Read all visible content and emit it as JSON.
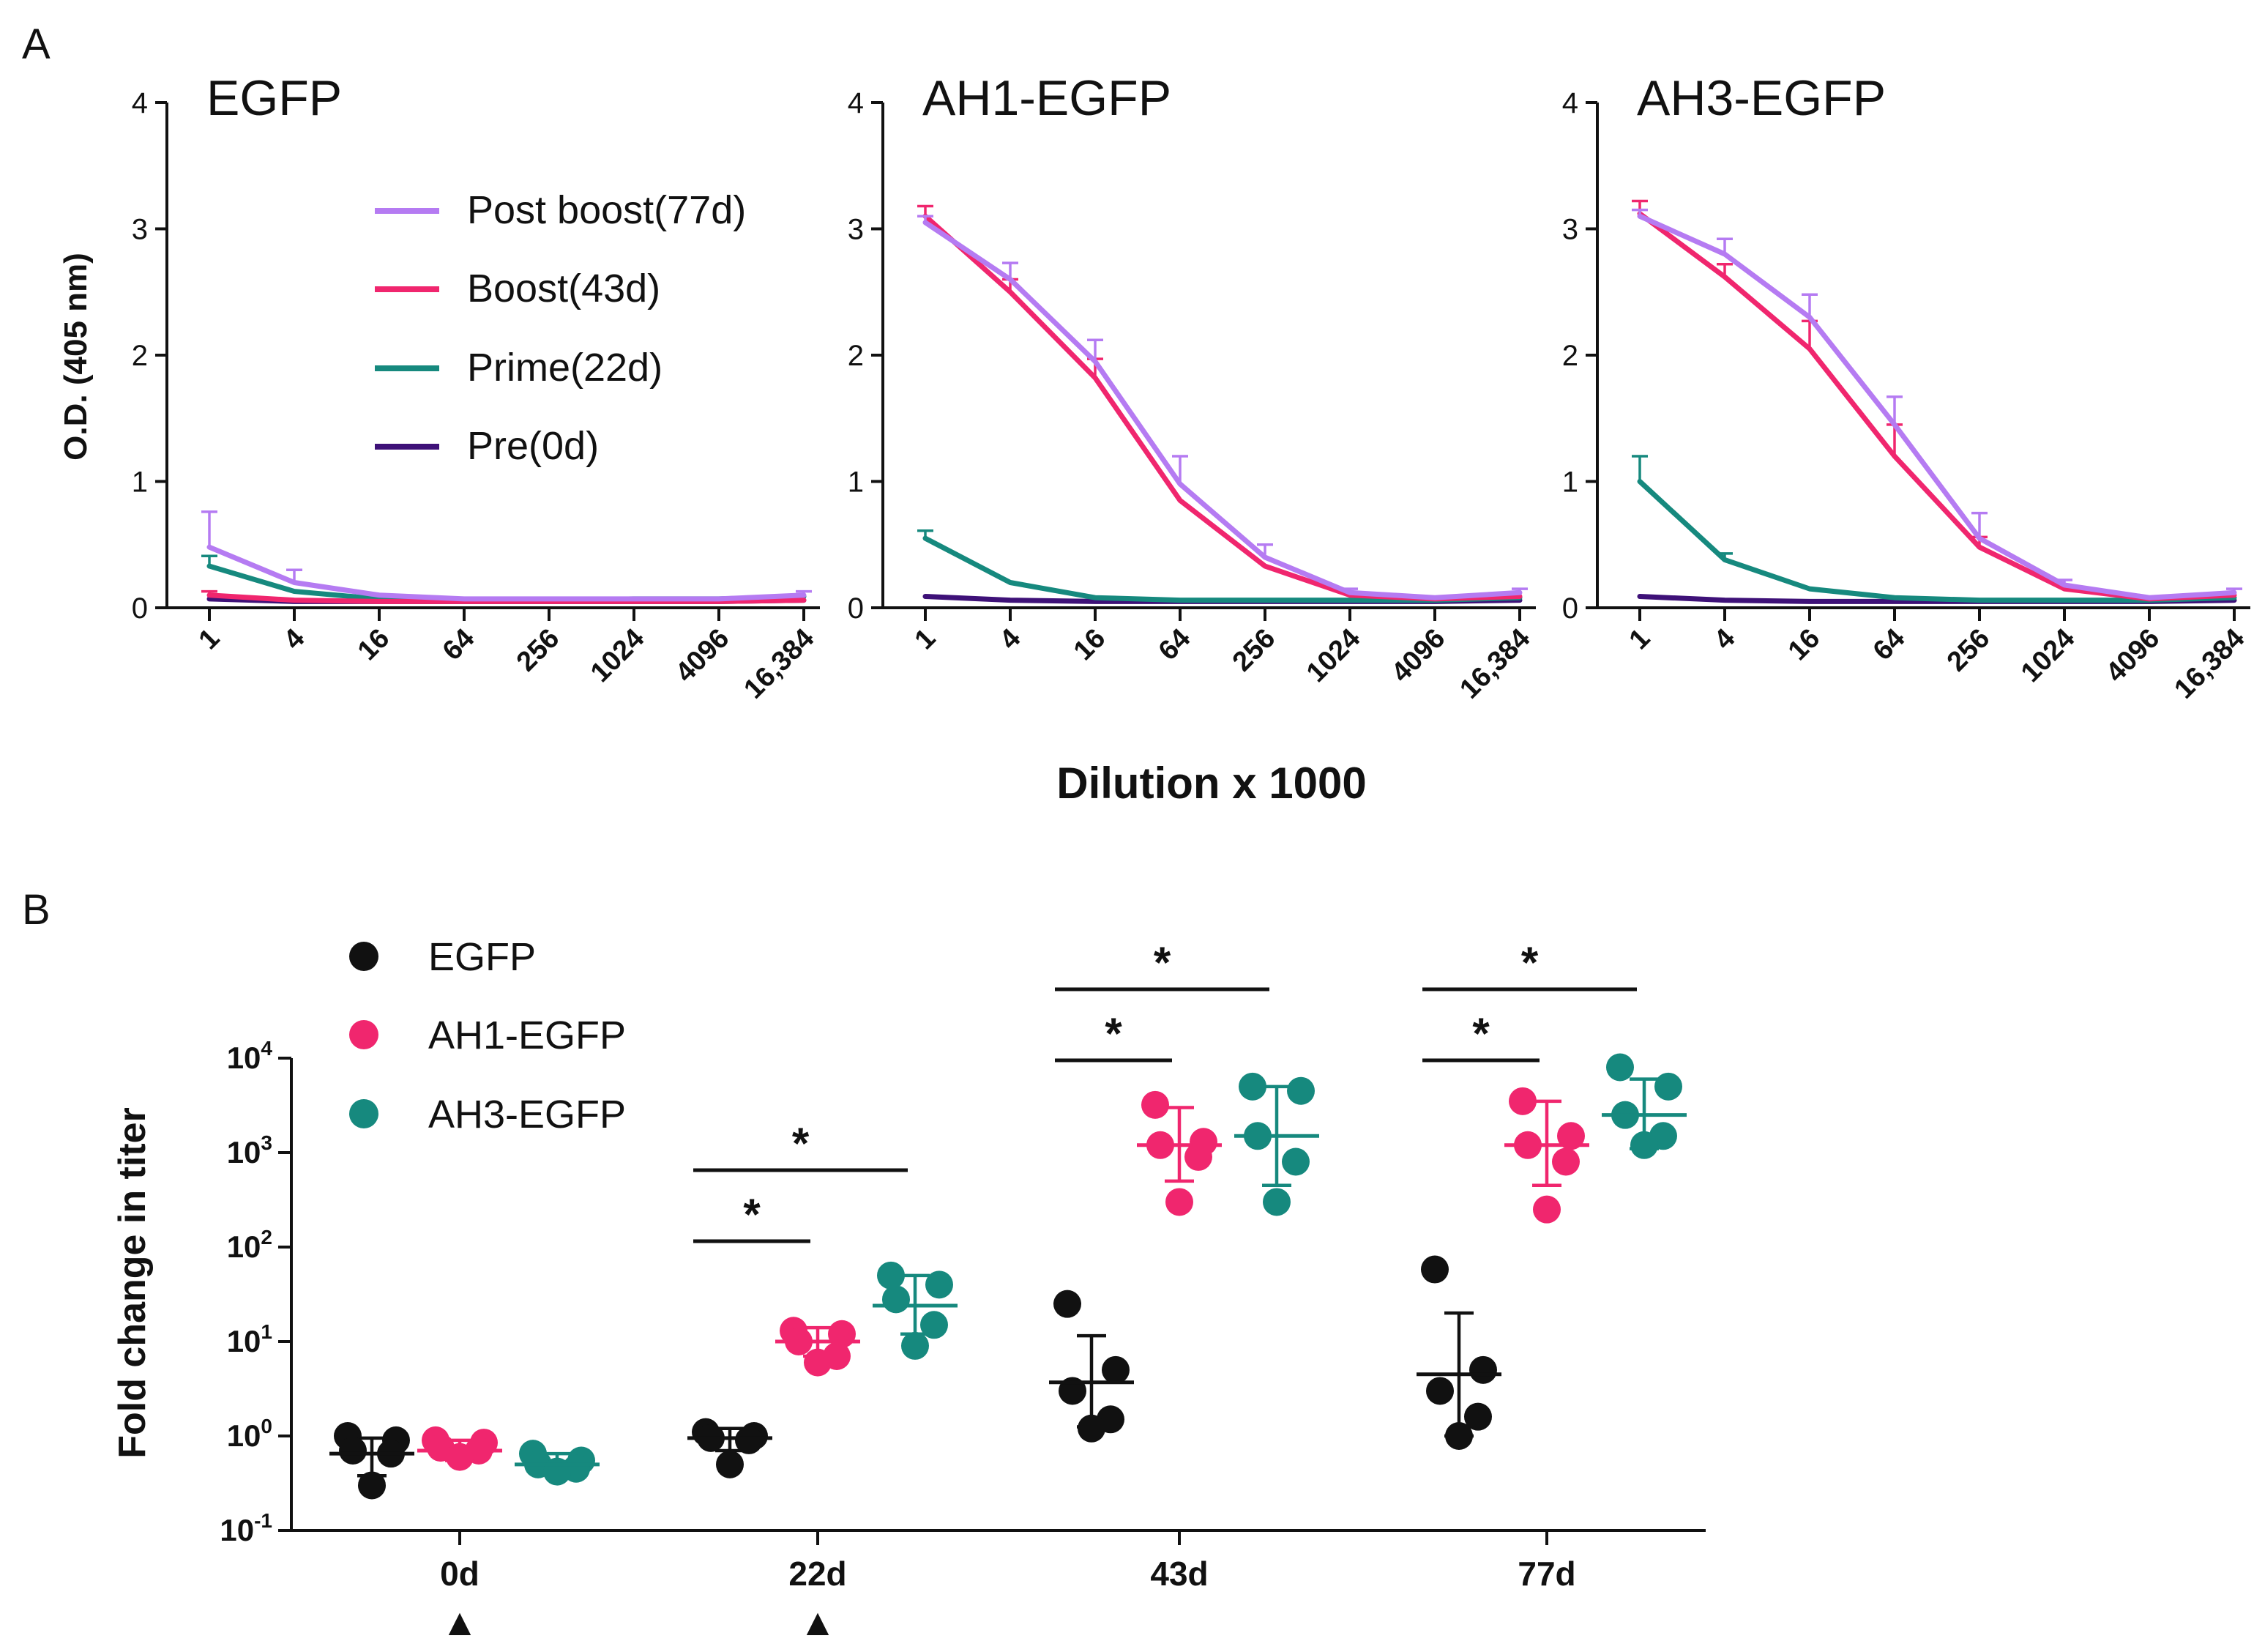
{
  "figure": {
    "panel_a_label": "A",
    "panel_b_label": "B"
  },
  "colors": {
    "post": "#B57BF2",
    "boost": "#F0266E",
    "prime": "#16897E",
    "pre": "#3E1178",
    "egfp": "#111111",
    "ah1": "#F0266E",
    "ah3": "#16897E",
    "axis": "#111111"
  },
  "chart_data": [
    {
      "type": "line",
      "panel": "A",
      "title": "EGFP",
      "ylabel": "O.D. (405 nm)",
      "xlabel": "Dilution x 1000",
      "categories": [
        "1",
        "4",
        "16",
        "64",
        "256",
        "1024",
        "4096",
        "16,384"
      ],
      "yticks": [
        "0",
        "1",
        "2",
        "3",
        "4"
      ],
      "ylim": [
        0,
        4
      ],
      "legend": {
        "placement": "top-right",
        "entries": [
          "Post boost(77d)",
          "Boost(43d)",
          "Prime(22d)",
          "Pre(0d)"
        ]
      },
      "series": [
        {
          "name": "Post boost(77d)",
          "color_key": "post",
          "values": [
            0.48,
            0.2,
            0.1,
            0.07,
            0.07,
            0.07,
            0.07,
            0.1
          ],
          "errors": [
            0.28,
            0.1,
            0,
            0,
            0,
            0,
            0,
            0.03
          ]
        },
        {
          "name": "Boost(43d)",
          "color_key": "boost",
          "values": [
            0.1,
            0.06,
            0.05,
            0.05,
            0.05,
            0.05,
            0.05,
            0.06
          ],
          "errors": [
            0.03,
            0,
            0,
            0,
            0,
            0,
            0,
            0
          ]
        },
        {
          "name": "Prime(22d)",
          "color_key": "prime",
          "values": [
            0.33,
            0.13,
            0.07,
            0.06,
            0.06,
            0.07,
            0.07,
            0.09
          ],
          "errors": [
            0.08,
            0,
            0,
            0,
            0,
            0,
            0,
            0
          ]
        },
        {
          "name": "Pre(0d)",
          "color_key": "pre",
          "values": [
            0.07,
            0.05,
            0.05,
            0.05,
            0.05,
            0.05,
            0.05,
            0.06
          ],
          "errors": [
            0,
            0,
            0,
            0,
            0,
            0,
            0,
            0
          ]
        }
      ]
    },
    {
      "type": "line",
      "panel": "A",
      "title": "AH1-EGFP",
      "categories": [
        "1",
        "4",
        "16",
        "64",
        "256",
        "1024",
        "4096",
        "16,384"
      ],
      "yticks": [
        "0",
        "1",
        "2",
        "3",
        "4"
      ],
      "ylim": [
        0,
        4
      ],
      "series": [
        {
          "name": "Post boost(77d)",
          "color_key": "post",
          "values": [
            3.05,
            2.6,
            1.95,
            0.98,
            0.4,
            0.12,
            0.08,
            0.12
          ],
          "errors": [
            0.05,
            0.13,
            0.17,
            0.22,
            0.1,
            0.03,
            0,
            0.03
          ]
        },
        {
          "name": "Boost(43d)",
          "color_key": "boost",
          "values": [
            3.1,
            2.5,
            1.82,
            0.85,
            0.33,
            0.1,
            0.07,
            0.09
          ],
          "errors": [
            0.08,
            0.1,
            0.15,
            0,
            0,
            0,
            0,
            0
          ]
        },
        {
          "name": "Prime(22d)",
          "color_key": "prime",
          "values": [
            0.55,
            0.2,
            0.08,
            0.06,
            0.06,
            0.06,
            0.06,
            0.08
          ],
          "errors": [
            0.06,
            0,
            0,
            0,
            0,
            0,
            0,
            0
          ]
        },
        {
          "name": "Pre(0d)",
          "color_key": "pre",
          "values": [
            0.09,
            0.06,
            0.05,
            0.05,
            0.05,
            0.05,
            0.05,
            0.06
          ],
          "errors": [
            0,
            0,
            0,
            0,
            0,
            0,
            0,
            0
          ]
        }
      ]
    },
    {
      "type": "line",
      "panel": "A",
      "title": "AH3-EGFP",
      "categories": [
        "1",
        "4",
        "16",
        "64",
        "256",
        "1024",
        "4096",
        "16,384"
      ],
      "yticks": [
        "0",
        "1",
        "2",
        "3",
        "4"
      ],
      "ylim": [
        0,
        4
      ],
      "series": [
        {
          "name": "Post boost(77d)",
          "color_key": "post",
          "values": [
            3.1,
            2.8,
            2.3,
            1.45,
            0.55,
            0.18,
            0.08,
            0.12
          ],
          "errors": [
            0.05,
            0.12,
            0.18,
            0.22,
            0.2,
            0.04,
            0,
            0.03
          ]
        },
        {
          "name": "Boost(43d)",
          "color_key": "boost",
          "values": [
            3.12,
            2.62,
            2.05,
            1.2,
            0.48,
            0.15,
            0.07,
            0.1
          ],
          "errors": [
            0.1,
            0.1,
            0.22,
            0.25,
            0.08,
            0.03,
            0,
            0
          ]
        },
        {
          "name": "Prime(22d)",
          "color_key": "prime",
          "values": [
            1.0,
            0.38,
            0.15,
            0.08,
            0.06,
            0.06,
            0.06,
            0.08
          ],
          "errors": [
            0.2,
            0.05,
            0,
            0,
            0,
            0,
            0,
            0
          ]
        },
        {
          "name": "Pre(0d)",
          "color_key": "pre",
          "values": [
            0.09,
            0.06,
            0.05,
            0.05,
            0.05,
            0.05,
            0.05,
            0.06
          ],
          "errors": [
            0,
            0,
            0,
            0,
            0,
            0,
            0,
            0
          ]
        }
      ]
    },
    {
      "type": "scatter",
      "panel": "B",
      "ylabel": "Fold change in titer",
      "yscale": "log",
      "ylim_exp": [
        -1,
        4
      ],
      "ytick_base": "10",
      "ytick_exponents": [
        "-1",
        "0",
        "1",
        "2",
        "3",
        "4"
      ],
      "categories": [
        "0d",
        "22d",
        "43d",
        "77d"
      ],
      "timepoint_markers": {
        "symbol": "▲",
        "at": [
          "0d",
          "22d"
        ]
      },
      "legend": {
        "placement": "top-left",
        "entries": [
          "EGFP",
          "AH1-EGFP",
          "AH3-EGFP"
        ]
      },
      "significance_label": "*",
      "significance": [
        {
          "category": "22d",
          "pair": [
            "EGFP",
            "AH1-EGFP"
          ],
          "label": "*"
        },
        {
          "category": "22d",
          "pair": [
            "EGFP",
            "AH3-EGFP"
          ],
          "label": "*"
        },
        {
          "category": "43d",
          "pair": [
            "EGFP",
            "AH1-EGFP"
          ],
          "label": "*"
        },
        {
          "category": "43d",
          "pair": [
            "EGFP",
            "AH3-EGFP"
          ],
          "label": "*"
        },
        {
          "category": "77d",
          "pair": [
            "EGFP",
            "AH1-EGFP"
          ],
          "label": "*"
        },
        {
          "category": "77d",
          "pair": [
            "EGFP",
            "AH3-EGFP"
          ],
          "label": "*"
        }
      ],
      "series": [
        {
          "name": "EGFP",
          "color_key": "egfp",
          "groups": [
            {
              "category": "0d",
              "points": [
                1.0,
                0.9,
                0.7,
                0.65,
                0.3
              ],
              "center": 0.65,
              "err_low": 0.38,
              "err_high": 0.95
            },
            {
              "category": "22d",
              "points": [
                1.1,
                1.0,
                0.95,
                0.9,
                0.5
              ],
              "center": 0.95,
              "err_low": 0.7,
              "err_high": 1.2
            },
            {
              "category": "43d",
              "points": [
                25,
                5,
                3,
                1.5,
                1.2
              ],
              "center": 3.7,
              "err_low": 1.25,
              "err_high": 11.5
            },
            {
              "category": "77d",
              "points": [
                58,
                5,
                3,
                1.6,
                1.0
              ],
              "center": 4.5,
              "err_low": 1.0,
              "err_high": 20
            }
          ]
        },
        {
          "name": "AH1-EGFP",
          "color_key": "ah1",
          "groups": [
            {
              "category": "0d",
              "points": [
                0.9,
                0.85,
                0.75,
                0.7,
                0.6
              ],
              "center": 0.7,
              "err_low": 0.55,
              "err_high": 0.9
            },
            {
              "category": "22d",
              "points": [
                13,
                12,
                10,
                7,
                6
              ],
              "center": 10,
              "err_low": 7,
              "err_high": 14
            },
            {
              "category": "43d",
              "points": [
                3200,
                1300,
                1200,
                900,
                300
              ],
              "center": 1200,
              "err_low": 500,
              "err_high": 3000
            },
            {
              "category": "77d",
              "points": [
                3500,
                1500,
                1200,
                800,
                250
              ],
              "center": 1200,
              "err_low": 450,
              "err_high": 3500
            }
          ]
        },
        {
          "name": "AH3-EGFP",
          "color_key": "ah3",
          "groups": [
            {
              "category": "0d",
              "points": [
                0.65,
                0.55,
                0.5,
                0.45,
                0.42
              ],
              "center": 0.5,
              "err_low": 0.42,
              "err_high": 0.65
            },
            {
              "category": "22d",
              "points": [
                50,
                40,
                28,
                15,
                9
              ],
              "center": 24,
              "err_low": 12,
              "err_high": 50
            },
            {
              "category": "43d",
              "points": [
                5000,
                4500,
                1500,
                800,
                300
              ],
              "center": 1500,
              "err_low": 450,
              "err_high": 5000
            },
            {
              "category": "77d",
              "points": [
                8000,
                5000,
                2500,
                1500,
                1200
              ],
              "center": 2500,
              "err_low": 1100,
              "err_high": 6000
            }
          ]
        }
      ]
    }
  ]
}
